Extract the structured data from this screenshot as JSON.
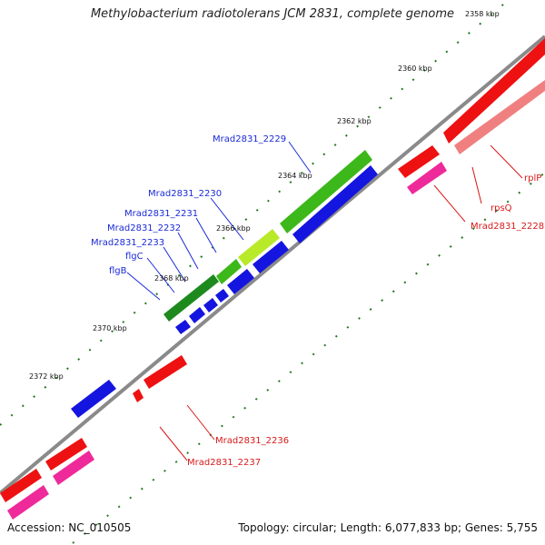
{
  "title": "Methylobacterium radiotolerans JCM 2831, complete genome",
  "footer": {
    "accession": "Accession: NC_010505",
    "summary": "Topology: circular; Length: 6,077,833 bp; Genes: 5,755"
  },
  "colors": {
    "backbone": "#8a8a8a",
    "tick": "#1f7a1f",
    "label_blue": "#1a2ad6",
    "label_red": "#d61a1a",
    "gene_blue": "#1515e0",
    "gene_red": "#ee1111",
    "gene_pink": "#ee2a9a",
    "gene_light_red": "#f08080",
    "gene_green": "#3cb81a",
    "gene_dark_green": "#1e8a1e",
    "gene_yellow_green": "#b8ea2a"
  },
  "scale_labels": [
    "2358 kbp",
    "2360 kbp",
    "2362 kbp",
    "2364 kbp",
    "2366 kbp",
    "2368 kbp",
    "2370 kbp",
    "2372 kbp"
  ],
  "gene_labels": {
    "blue": [
      "Mrad2831_2229",
      "Mrad2831_2230",
      "Mrad2831_2231",
      "Mrad2831_2232",
      "Mrad2831_2233",
      "flgC",
      "flgB"
    ],
    "red": [
      "rplP",
      "rpsQ",
      "Mrad2831_2228",
      "Mrad2831_2236",
      "Mrad2831_2237"
    ]
  }
}
